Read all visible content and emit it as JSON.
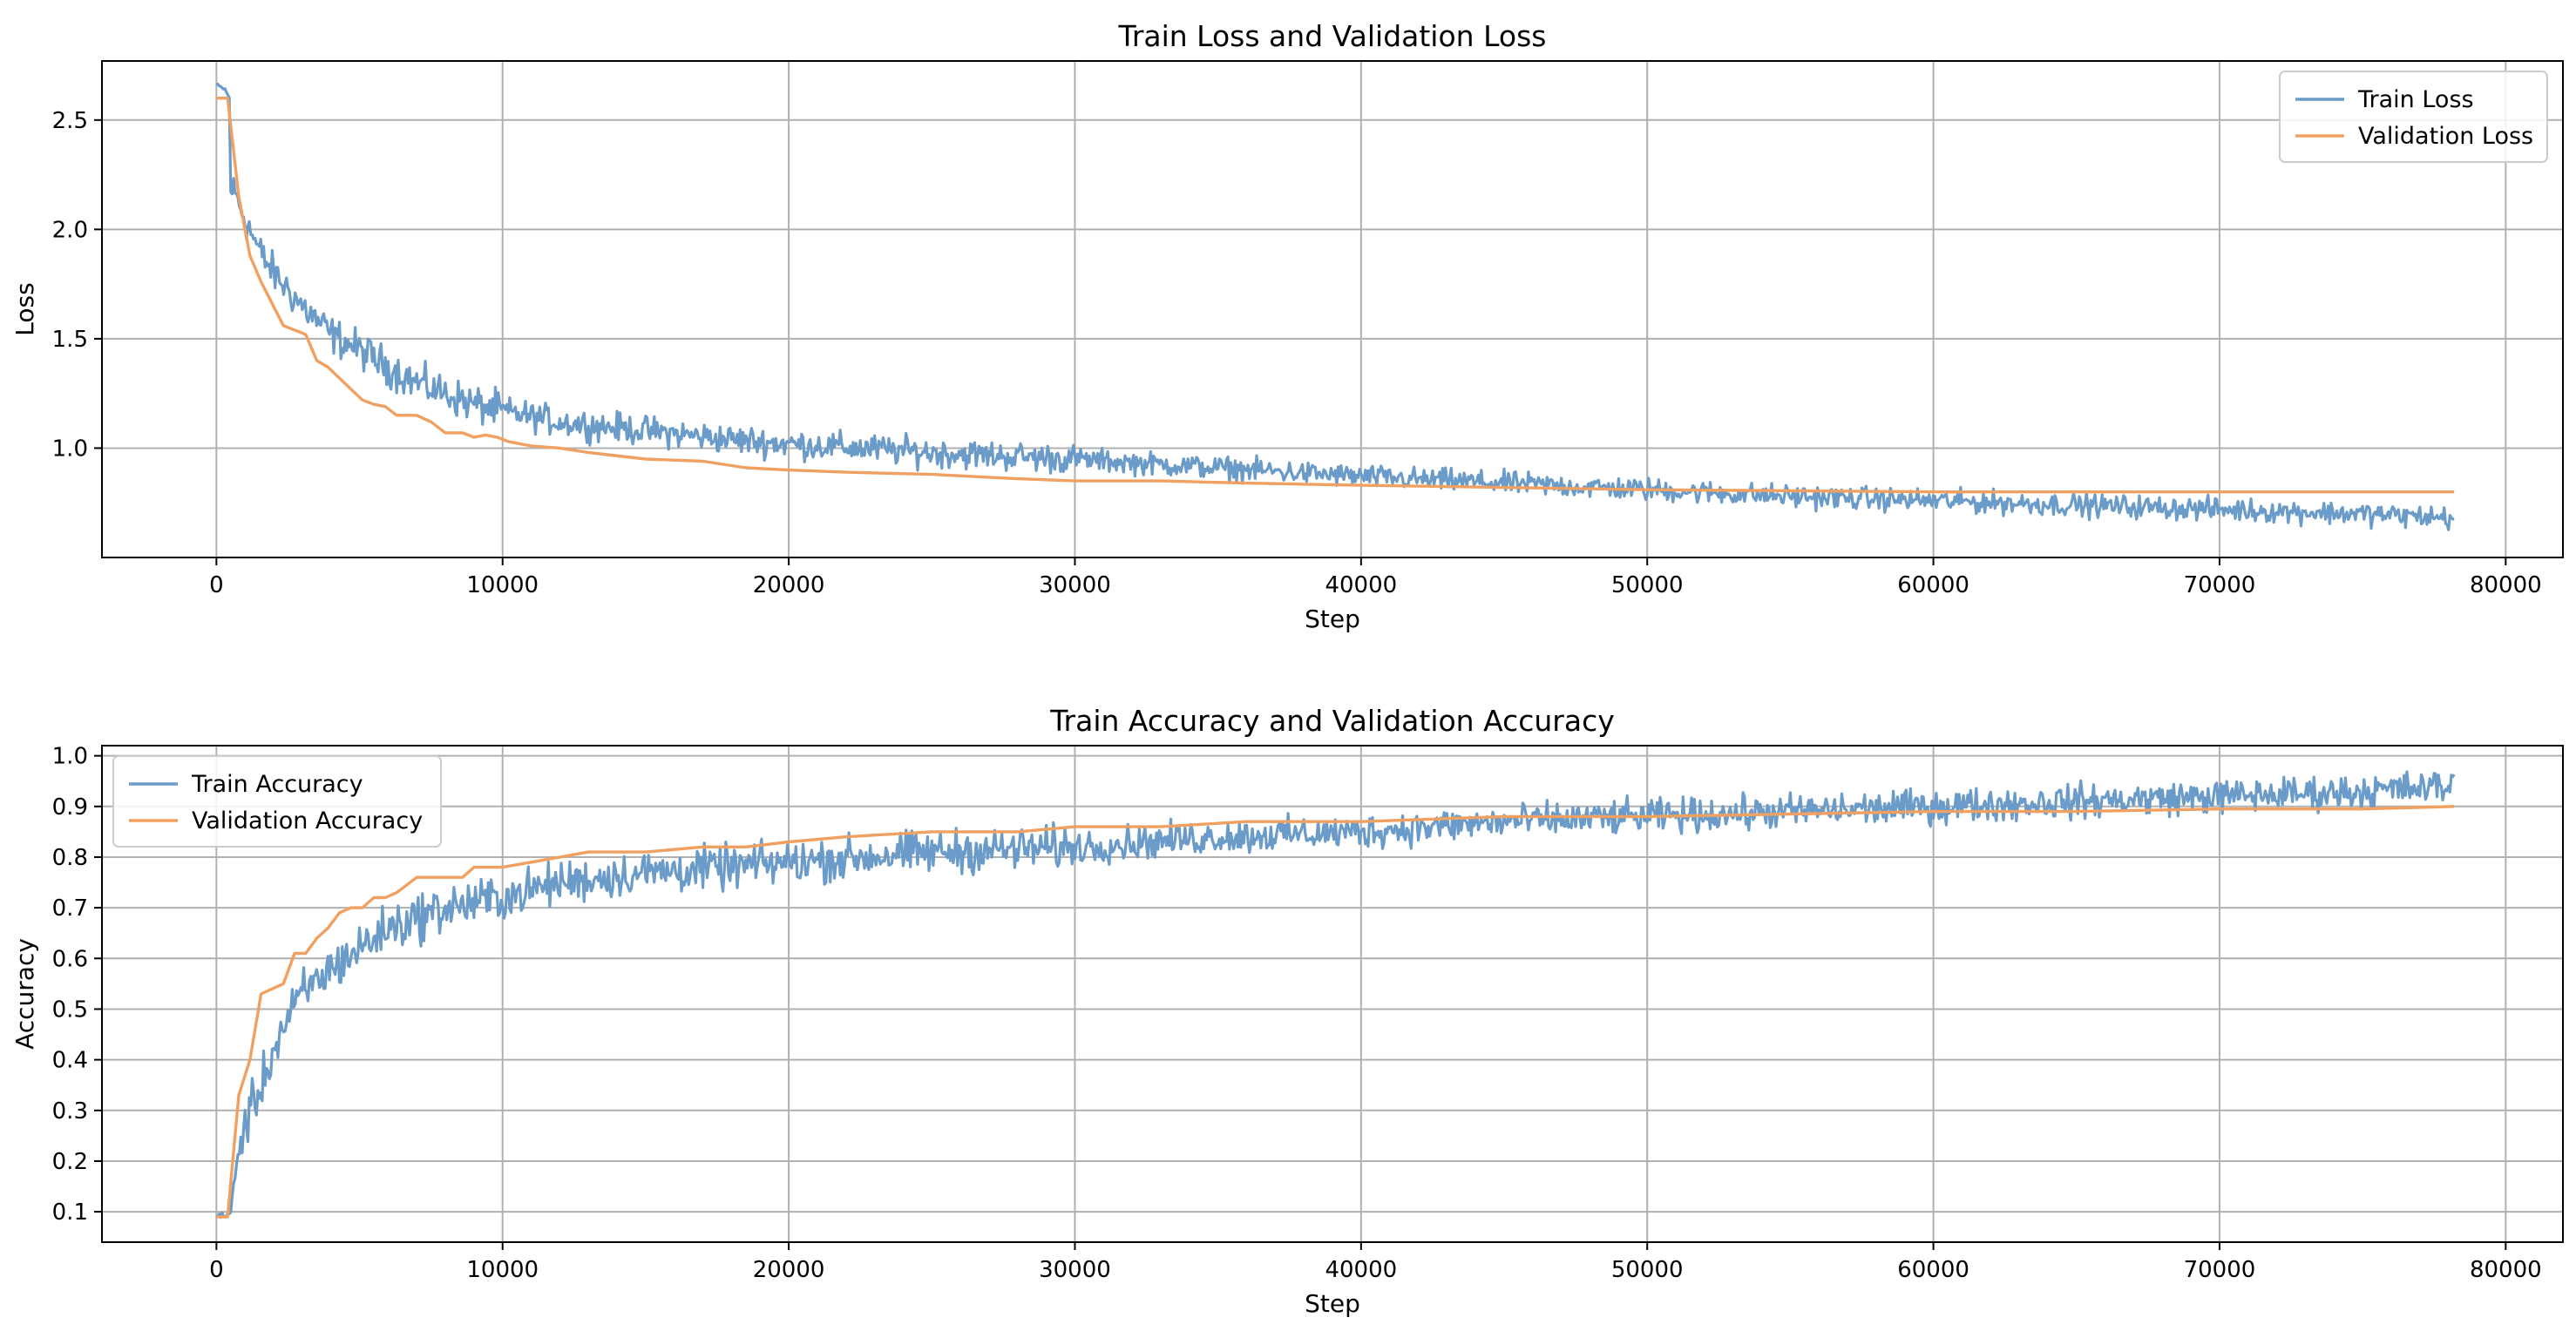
{
  "chart_data": [
    {
      "type": "line",
      "title": "Train Loss and Validation Loss",
      "xlabel": "Step",
      "ylabel": "Loss",
      "xlim": [
        -4000,
        82000
      ],
      "ylim": [
        0.5,
        2.77
      ],
      "xticks": [
        0,
        10000,
        20000,
        30000,
        40000,
        50000,
        60000,
        70000,
        80000
      ],
      "yticks": [
        1.0,
        1.5,
        2.0,
        2.5
      ],
      "ytick_labels": [
        "1.0",
        "1.5",
        "2.0",
        "2.5"
      ],
      "grid": true,
      "legend": "top-right",
      "series": [
        {
          "name": "Train Loss",
          "color": "#6a9bc9",
          "noisy": true,
          "points": [
            [
              0,
              2.66
            ],
            [
              300,
              2.64
            ],
            [
              450,
              2.6
            ],
            [
              500,
              2.2
            ],
            [
              700,
              2.15
            ],
            [
              1000,
              2.05
            ],
            [
              1500,
              1.9
            ],
            [
              2000,
              1.8
            ],
            [
              3000,
              1.65
            ],
            [
              4000,
              1.52
            ],
            [
              5000,
              1.45
            ],
            [
              6000,
              1.37
            ],
            [
              7000,
              1.3
            ],
            [
              8000,
              1.25
            ],
            [
              9000,
              1.2
            ],
            [
              10000,
              1.17
            ],
            [
              12000,
              1.12
            ],
            [
              15000,
              1.08
            ],
            [
              18000,
              1.04
            ],
            [
              20000,
              1.02
            ],
            [
              25000,
              0.98
            ],
            [
              30000,
              0.95
            ],
            [
              35000,
              0.91
            ],
            [
              40000,
              0.87
            ],
            [
              45000,
              0.84
            ],
            [
              50000,
              0.81
            ],
            [
              55000,
              0.78
            ],
            [
              60000,
              0.76
            ],
            [
              65000,
              0.74
            ],
            [
              70000,
              0.72
            ],
            [
              75000,
              0.7
            ],
            [
              78200,
              0.68
            ]
          ]
        },
        {
          "name": "Validation Loss",
          "color": "#f0a060",
          "noisy": false,
          "points": [
            [
              0,
              2.6
            ],
            [
              390,
              2.6
            ],
            [
              780,
              2.15
            ],
            [
              1170,
              1.88
            ],
            [
              1560,
              1.76
            ],
            [
              1950,
              1.66
            ],
            [
              2340,
              1.56
            ],
            [
              2730,
              1.54
            ],
            [
              3120,
              1.52
            ],
            [
              3510,
              1.4
            ],
            [
              3900,
              1.37
            ],
            [
              4300,
              1.32
            ],
            [
              4700,
              1.27
            ],
            [
              5100,
              1.22
            ],
            [
              5500,
              1.2
            ],
            [
              5900,
              1.19
            ],
            [
              6300,
              1.15
            ],
            [
              7000,
              1.15
            ],
            [
              7500,
              1.12
            ],
            [
              8000,
              1.07
            ],
            [
              8600,
              1.07
            ],
            [
              9000,
              1.05
            ],
            [
              9400,
              1.06
            ],
            [
              9800,
              1.05
            ],
            [
              10200,
              1.03
            ],
            [
              11000,
              1.01
            ],
            [
              12000,
              1.0
            ],
            [
              13000,
              0.98
            ],
            [
              15000,
              0.95
            ],
            [
              17000,
              0.94
            ],
            [
              18500,
              0.91
            ],
            [
              20000,
              0.9
            ],
            [
              22000,
              0.89
            ],
            [
              25000,
              0.88
            ],
            [
              28000,
              0.86
            ],
            [
              30000,
              0.85
            ],
            [
              33000,
              0.85
            ],
            [
              36000,
              0.84
            ],
            [
              40000,
              0.83
            ],
            [
              45000,
              0.82
            ],
            [
              50000,
              0.81
            ],
            [
              55000,
              0.805
            ],
            [
              60000,
              0.8
            ],
            [
              65000,
              0.8
            ],
            [
              70000,
              0.8
            ],
            [
              75000,
              0.8
            ],
            [
              78200,
              0.8
            ]
          ]
        }
      ]
    },
    {
      "type": "line",
      "title": "Train Accuracy and Validation Accuracy",
      "xlabel": "Step",
      "ylabel": "Accuracy",
      "xlim": [
        -4000,
        82000
      ],
      "ylim": [
        0.04,
        1.02
      ],
      "xticks": [
        0,
        10000,
        20000,
        30000,
        40000,
        50000,
        60000,
        70000,
        80000
      ],
      "yticks": [
        0.1,
        0.2,
        0.3,
        0.4,
        0.5,
        0.6,
        0.7,
        0.8,
        0.9,
        1.0
      ],
      "ytick_labels": [
        "0.1",
        "0.2",
        "0.3",
        "0.4",
        "0.5",
        "0.6",
        "0.7",
        "0.8",
        "0.9",
        "1.0"
      ],
      "grid": true,
      "legend": "top-left",
      "series": [
        {
          "name": "Train Accuracy",
          "color": "#6a9bc9",
          "noisy": true,
          "points": [
            [
              0,
              0.09
            ],
            [
              300,
              0.09
            ],
            [
              500,
              0.1
            ],
            [
              700,
              0.2
            ],
            [
              1000,
              0.27
            ],
            [
              1500,
              0.34
            ],
            [
              2000,
              0.42
            ],
            [
              2500,
              0.48
            ],
            [
              3000,
              0.53
            ],
            [
              4000,
              0.58
            ],
            [
              5000,
              0.62
            ],
            [
              6000,
              0.66
            ],
            [
              7000,
              0.68
            ],
            [
              8000,
              0.7
            ],
            [
              9000,
              0.71
            ],
            [
              10000,
              0.72
            ],
            [
              12000,
              0.75
            ],
            [
              15000,
              0.77
            ],
            [
              18000,
              0.78
            ],
            [
              20000,
              0.79
            ],
            [
              25000,
              0.81
            ],
            [
              30000,
              0.82
            ],
            [
              35000,
              0.84
            ],
            [
              40000,
              0.85
            ],
            [
              45000,
              0.87
            ],
            [
              50000,
              0.88
            ],
            [
              55000,
              0.89
            ],
            [
              60000,
              0.9
            ],
            [
              65000,
              0.91
            ],
            [
              70000,
              0.92
            ],
            [
              75000,
              0.93
            ],
            [
              78200,
              0.94
            ]
          ]
        },
        {
          "name": "Validation Accuracy",
          "color": "#f0a060",
          "noisy": false,
          "points": [
            [
              0,
              0.09
            ],
            [
              390,
              0.09
            ],
            [
              780,
              0.33
            ],
            [
              1170,
              0.4
            ],
            [
              1560,
              0.53
            ],
            [
              1950,
              0.54
            ],
            [
              2340,
              0.55
            ],
            [
              2730,
              0.61
            ],
            [
              3120,
              0.61
            ],
            [
              3510,
              0.64
            ],
            [
              3900,
              0.66
            ],
            [
              4300,
              0.69
            ],
            [
              4700,
              0.7
            ],
            [
              5100,
              0.7
            ],
            [
              5500,
              0.72
            ],
            [
              5900,
              0.72
            ],
            [
              6300,
              0.73
            ],
            [
              7000,
              0.76
            ],
            [
              7500,
              0.76
            ],
            [
              8000,
              0.76
            ],
            [
              8600,
              0.76
            ],
            [
              9000,
              0.78
            ],
            [
              9400,
              0.78
            ],
            [
              10000,
              0.78
            ],
            [
              11000,
              0.79
            ],
            [
              12000,
              0.8
            ],
            [
              13000,
              0.81
            ],
            [
              15000,
              0.81
            ],
            [
              17000,
              0.82
            ],
            [
              18500,
              0.82
            ],
            [
              20000,
              0.83
            ],
            [
              22000,
              0.84
            ],
            [
              25000,
              0.85
            ],
            [
              28000,
              0.85
            ],
            [
              30000,
              0.86
            ],
            [
              33000,
              0.86
            ],
            [
              36000,
              0.87
            ],
            [
              40000,
              0.87
            ],
            [
              45000,
              0.88
            ],
            [
              50000,
              0.88
            ],
            [
              55000,
              0.885
            ],
            [
              60000,
              0.89
            ],
            [
              65000,
              0.89
            ],
            [
              70000,
              0.895
            ],
            [
              75000,
              0.895
            ],
            [
              78200,
              0.9
            ]
          ]
        }
      ]
    }
  ]
}
